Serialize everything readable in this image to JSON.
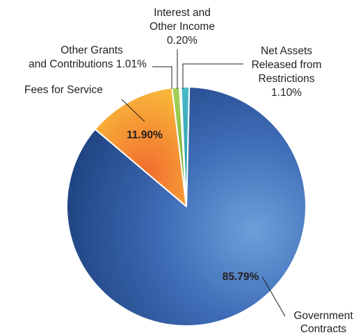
{
  "chart_data": {
    "type": "pie",
    "title": "",
    "slices": [
      {
        "label": "Government Contracts",
        "value": 85.79,
        "value_label": "85.79%",
        "color": "#3a64ad"
      },
      {
        "label": "Fees for Service",
        "value": 11.9,
        "value_label": "11.90%",
        "color": "#f39a2a"
      },
      {
        "label": "Other Grants and Contributions",
        "value": 1.01,
        "value_label": "1.01%",
        "color": "#8dc63f"
      },
      {
        "label": "Interest and Other Income",
        "value": 0.2,
        "value_label": "0.20%",
        "color": "#1f3f80"
      },
      {
        "label": "Net Assets Released from Restrictions",
        "value": 1.1,
        "value_label": "1.10%",
        "color": "#2aa6b8"
      }
    ]
  },
  "labels": {
    "government_line1": "Government",
    "government_line2": "Contracts",
    "government_pct": "85.79%",
    "fees_line1": "Fees for Service",
    "fees_pct": "11.90%",
    "grants_line1": "Other Grants",
    "grants_line2": "and Contributions 1.01%",
    "interest_line1": "Interest and",
    "interest_line2": "Other Income",
    "interest_line3": "0.20%",
    "net_line1": "Net Assets",
    "net_line2": "Released from",
    "net_line3": "Restrictions",
    "net_line4": "1.10%"
  }
}
